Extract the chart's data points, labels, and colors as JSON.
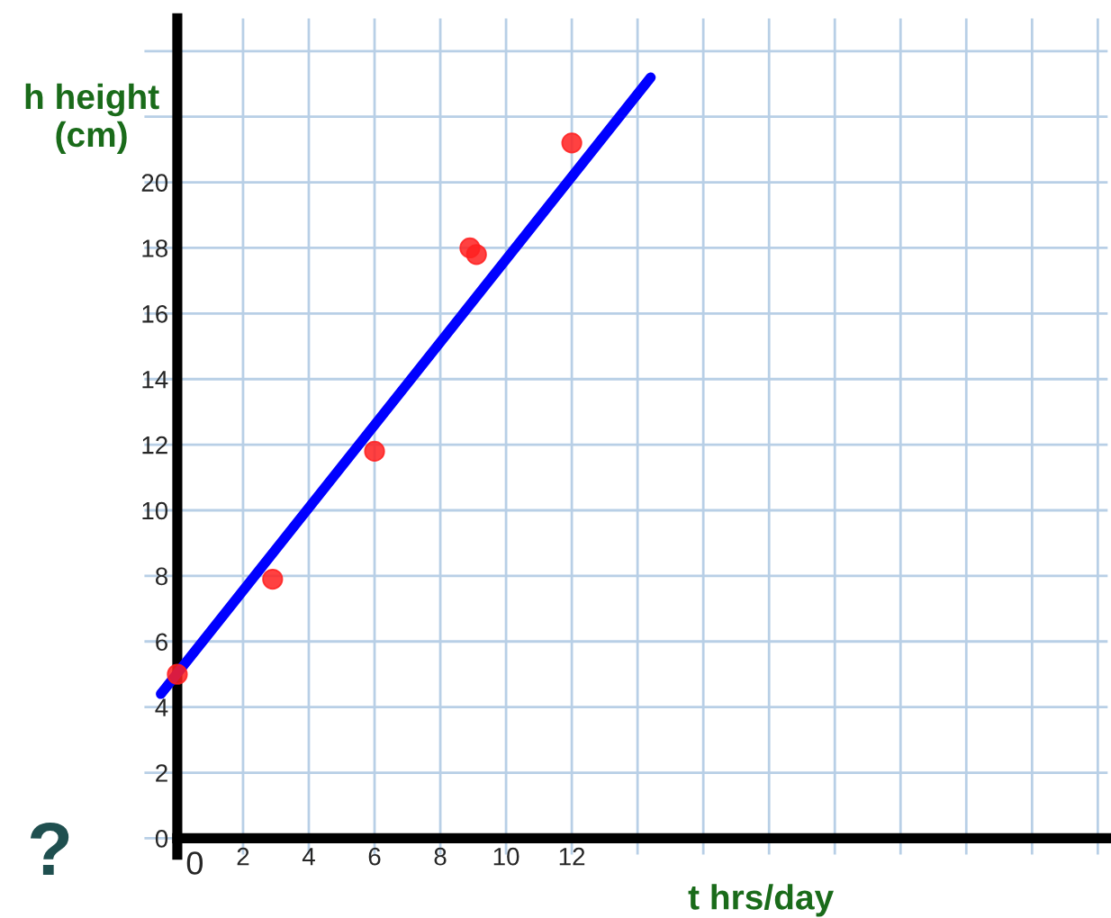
{
  "chart_data": {
    "type": "scatter",
    "xlabel": "t hrs/day",
    "ylabel": "h height\n(cm)",
    "annotations": [
      "?"
    ],
    "xlim": [
      -1,
      28.3
    ],
    "ylim": [
      -0.5,
      25
    ],
    "xticks": [
      0,
      2,
      4,
      6,
      8,
      10,
      12,
      {
        "value": 14,
        "label": null
      },
      {
        "value": 16,
        "label": null
      },
      {
        "value": 18,
        "label": null
      },
      {
        "value": 20,
        "label": null
      },
      {
        "value": 22,
        "label": null
      },
      {
        "value": 24,
        "label": null
      },
      {
        "value": 26,
        "label": null
      },
      {
        "value": 28,
        "label": null
      }
    ],
    "yticks": [
      0,
      2,
      4,
      6,
      8,
      10,
      12,
      14,
      16,
      18,
      20,
      {
        "value": 22,
        "label": null
      },
      {
        "value": 24,
        "label": null
      }
    ],
    "grid": true,
    "legend": false,
    "series": [
      {
        "marker": "circle",
        "color": "#ff2020",
        "x": [
          0,
          2.9,
          6.0,
          8.9,
          9.1,
          12.0
        ],
        "values": [
          5.0,
          7.9,
          11.8,
          18.0,
          17.8,
          21.2
        ]
      },
      {
        "type": "line",
        "color": "#0000ff",
        "x": [
          -0.5,
          14.4
        ],
        "values": [
          4.4,
          23.2
        ],
        "line_style": "solid"
      }
    ]
  }
}
